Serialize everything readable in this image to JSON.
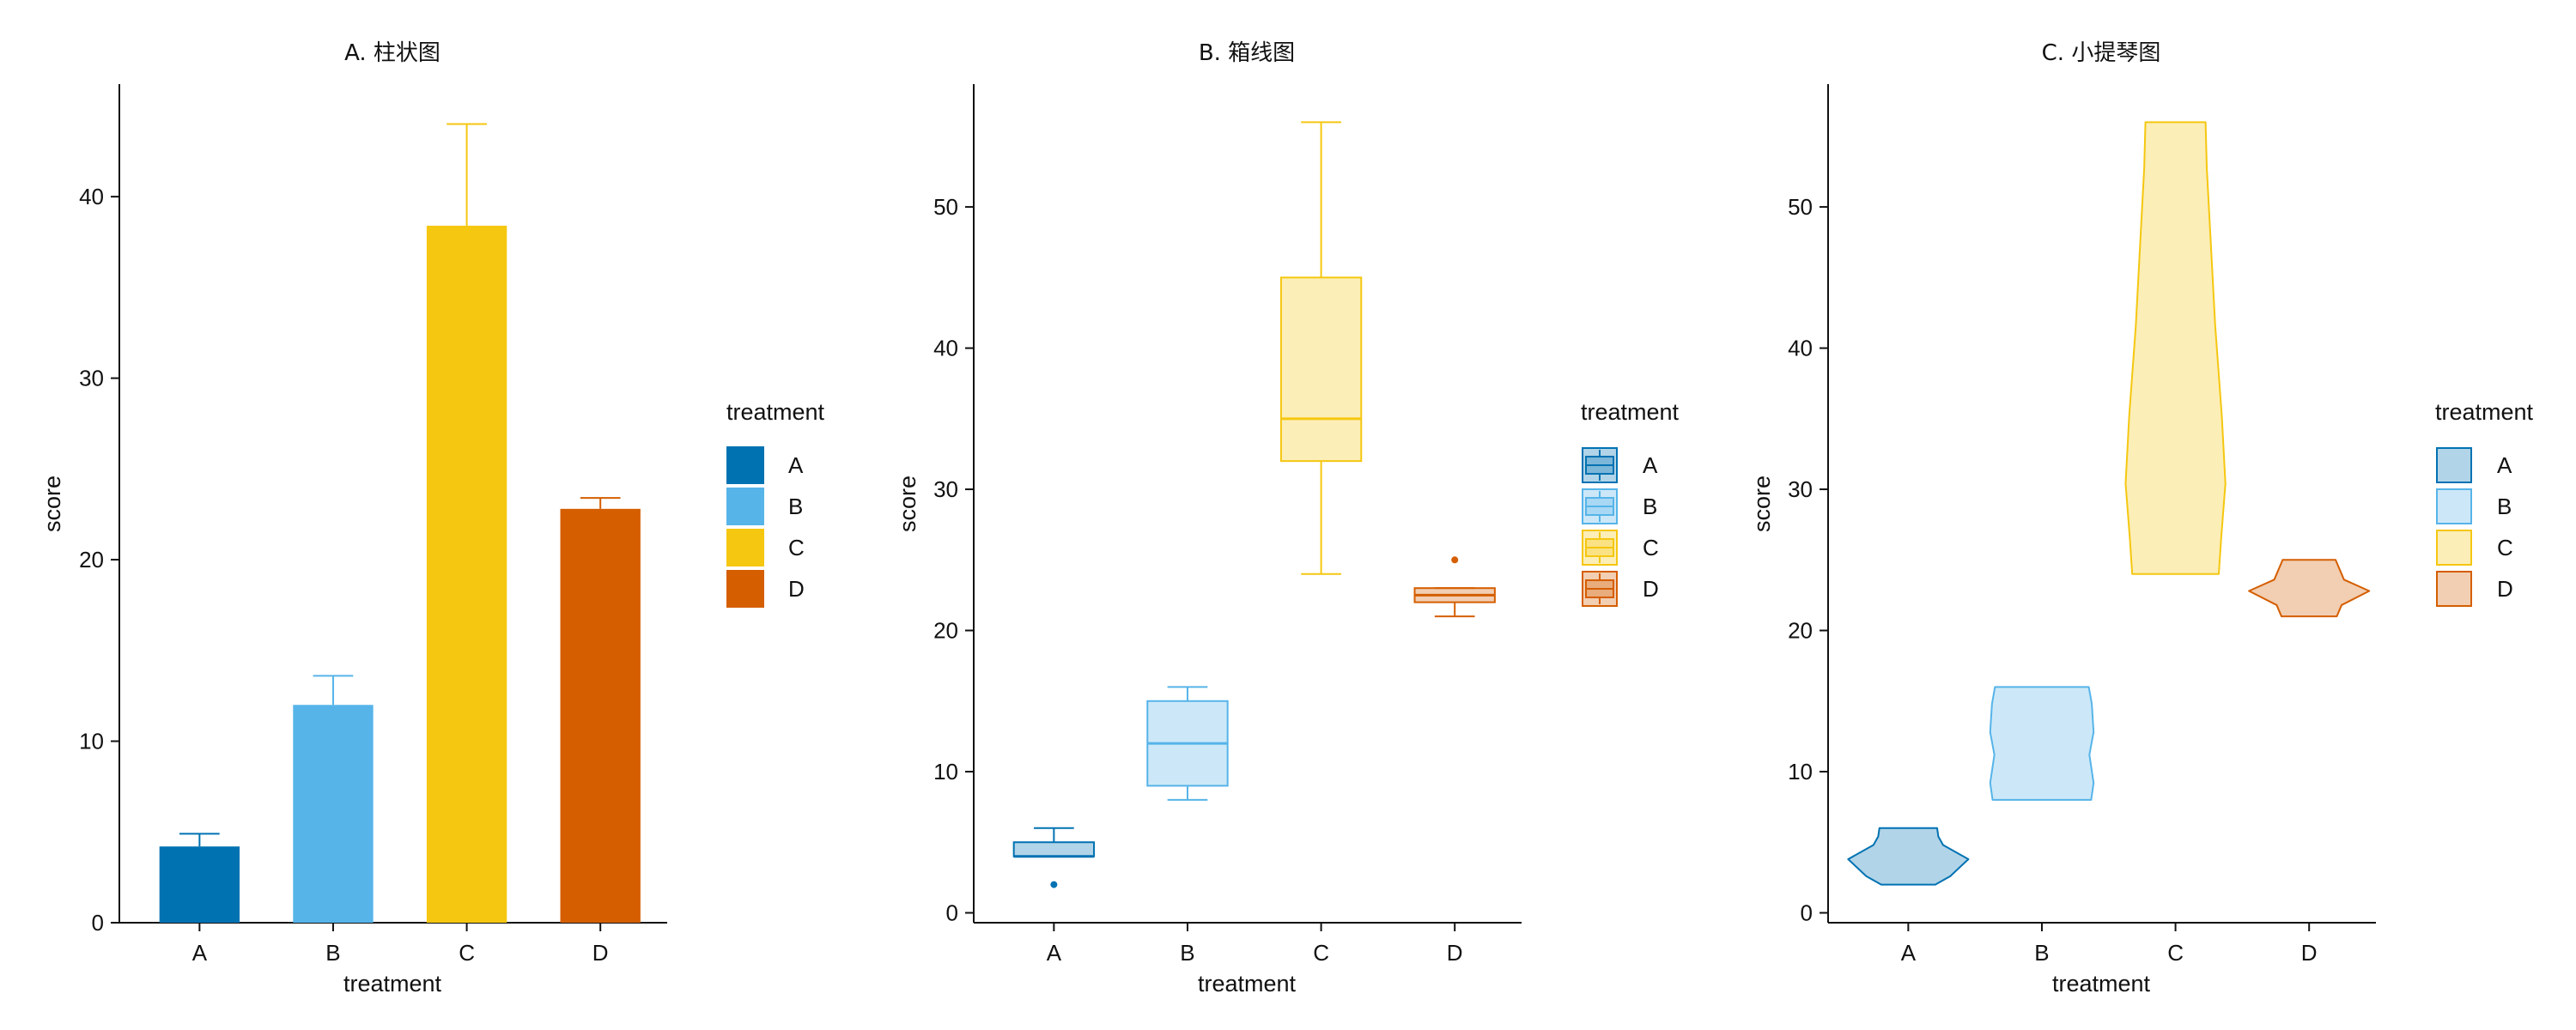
{
  "chart_data": [
    {
      "type": "bar",
      "title": "A. 柱状图",
      "xlabel": "treatment",
      "ylabel": "score",
      "categories": [
        "A",
        "B",
        "C",
        "D"
      ],
      "values": [
        4.2,
        12.0,
        38.4,
        22.8
      ],
      "error_upper": [
        4.9,
        13.6,
        44.0,
        23.4
      ],
      "ylim": [
        0,
        46.2
      ],
      "yticks": [
        0,
        10,
        20,
        30,
        40
      ],
      "legend": {
        "title": "treatment",
        "entries": [
          "A",
          "B",
          "C",
          "D"
        ],
        "position": "right"
      },
      "colors": [
        "#0072B2",
        "#56B4E9",
        "#F5C710",
        "#D55E00"
      ]
    },
    {
      "type": "box",
      "title": "B. 箱线图",
      "xlabel": "treatment",
      "ylabel": "score",
      "categories": [
        "A",
        "B",
        "C",
        "D"
      ],
      "boxes": [
        {
          "min": 4,
          "q1": 4,
          "median": 4,
          "q3": 5,
          "max": 6,
          "outliers": [
            2
          ]
        },
        {
          "min": 8,
          "q1": 9,
          "median": 12,
          "q3": 15,
          "max": 16,
          "outliers": []
        },
        {
          "min": 24,
          "q1": 32,
          "median": 35,
          "q3": 45,
          "max": 56,
          "outliers": []
        },
        {
          "min": 21,
          "q1": 22,
          "median": 22.5,
          "q3": 23,
          "max": 23,
          "outliers": [
            25
          ]
        }
      ],
      "ylim": [
        -0.7,
        58.7
      ],
      "yticks": [
        0,
        10,
        20,
        30,
        40,
        50
      ],
      "legend": {
        "title": "treatment",
        "entries": [
          "A",
          "B",
          "C",
          "D"
        ],
        "position": "right"
      },
      "colors": [
        "#0072B2",
        "#56B4E9",
        "#F5C710",
        "#D55E00"
      ]
    },
    {
      "type": "violin",
      "title": "C. 小提琴图",
      "xlabel": "treatment",
      "ylabel": "score",
      "categories": [
        "A",
        "B",
        "C",
        "D"
      ],
      "violins": [
        {
          "min": 2,
          "max": 6
        },
        {
          "min": 8,
          "max": 16
        },
        {
          "min": 24,
          "max": 56
        },
        {
          "min": 21,
          "max": 25
        }
      ],
      "ylim": [
        -0.7,
        58.7
      ],
      "yticks": [
        0,
        10,
        20,
        30,
        40,
        50
      ],
      "legend": {
        "title": "treatment",
        "entries": [
          "A",
          "B",
          "C",
          "D"
        ],
        "position": "right"
      },
      "colors": [
        "#0072B2",
        "#56B4E9",
        "#F5C710",
        "#D55E00"
      ]
    }
  ]
}
